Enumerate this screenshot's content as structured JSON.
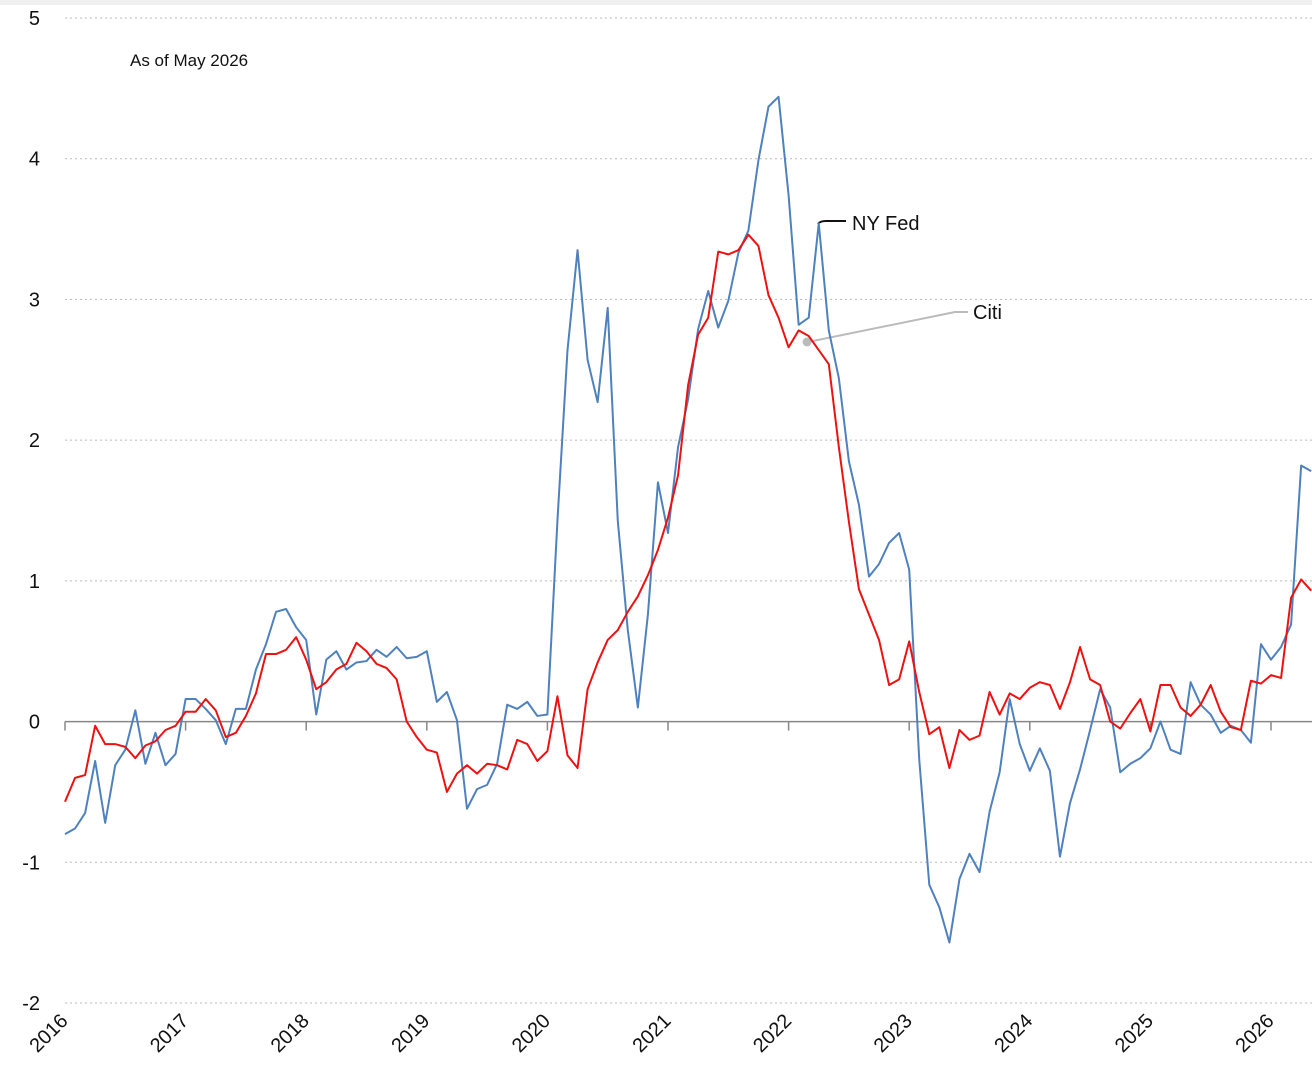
{
  "chart_data": {
    "type": "line",
    "note": "As of May 2026",
    "categories": [
      "2016",
      null,
      null,
      null,
      null,
      null,
      null,
      null,
      null,
      null,
      null,
      null,
      "2017",
      null,
      null,
      null,
      null,
      null,
      null,
      null,
      null,
      null,
      null,
      null,
      "2018",
      null,
      null,
      null,
      null,
      null,
      null,
      null,
      null,
      null,
      null,
      null,
      "2019",
      null,
      null,
      null,
      null,
      null,
      null,
      null,
      null,
      null,
      null,
      null,
      "2020",
      null,
      null,
      null,
      null,
      null,
      null,
      null,
      null,
      null,
      null,
      null,
      "2021",
      null,
      null,
      null,
      null,
      null,
      null,
      null,
      null,
      null,
      null,
      null,
      "2022",
      null,
      null,
      null,
      null,
      null,
      null,
      null,
      null,
      null,
      null,
      null,
      "2023",
      null,
      null,
      null,
      null,
      null,
      null,
      null,
      null,
      null,
      null,
      null,
      "2024",
      null,
      null,
      null,
      null,
      null,
      null,
      null,
      null,
      null,
      null,
      null,
      "2025",
      null,
      null,
      null,
      null,
      null,
      null,
      null,
      null,
      null,
      null,
      null,
      "2026",
      null,
      null,
      null,
      null
    ],
    "series": [
      {
        "name": "NY Fed",
        "color": "#4f81bd",
        "values": [
          -0.8,
          -0.76,
          -0.65,
          -0.28,
          -0.72,
          -0.31,
          -0.2,
          0.08,
          -0.3,
          -0.08,
          -0.31,
          -0.23,
          0.16,
          0.16,
          0.09,
          0.01,
          -0.16,
          0.09,
          0.09,
          0.37,
          0.55,
          0.78,
          0.8,
          0.67,
          0.58,
          0.05,
          0.44,
          0.5,
          0.37,
          0.42,
          0.43,
          0.51,
          0.46,
          0.53,
          0.45,
          0.46,
          0.5,
          0.14,
          0.21,
          0.01,
          -0.62,
          -0.48,
          -0.45,
          -0.3,
          0.12,
          0.09,
          0.14,
          0.04,
          0.05,
          1.43,
          2.64,
          3.35,
          2.57,
          2.27,
          2.94,
          1.43,
          0.65,
          0.1,
          0.76,
          1.7,
          1.34,
          1.95,
          2.29,
          2.79,
          3.06,
          2.8,
          2.99,
          3.33,
          3.49,
          3.99,
          4.37,
          4.44,
          3.74,
          2.82,
          2.87,
          3.54,
          2.78,
          2.44,
          1.85,
          1.54,
          1.03,
          1.12,
          1.27,
          1.34,
          1.08,
          -0.27,
          -1.16,
          -1.32,
          -1.57,
          -1.12,
          -0.94,
          -1.07,
          -0.64,
          -0.36,
          0.16,
          -0.16,
          -0.35,
          -0.19,
          -0.35,
          -0.96,
          -0.58,
          -0.34,
          -0.06,
          0.23,
          0.1,
          -0.36,
          -0.3,
          -0.26,
          -0.19,
          0.0,
          -0.2,
          -0.23,
          0.28,
          0.12,
          0.05,
          -0.08,
          -0.03,
          -0.06,
          -0.15,
          0.55,
          0.44,
          0.53,
          0.69,
          1.82,
          1.78
        ]
      },
      {
        "name": "Citi",
        "color": "#ee1111",
        "values": [
          -0.57,
          -0.4,
          -0.38,
          -0.03,
          -0.16,
          -0.16,
          -0.18,
          -0.26,
          -0.17,
          -0.14,
          -0.06,
          -0.03,
          0.07,
          0.07,
          0.16,
          0.08,
          -0.11,
          -0.08,
          0.04,
          0.2,
          0.48,
          0.48,
          0.51,
          0.6,
          0.44,
          0.23,
          0.28,
          0.37,
          0.41,
          0.56,
          0.5,
          0.41,
          0.38,
          0.3,
          0.0,
          -0.11,
          -0.2,
          -0.22,
          -0.5,
          -0.37,
          -0.31,
          -0.37,
          -0.3,
          -0.31,
          -0.34,
          -0.13,
          -0.16,
          -0.28,
          -0.21,
          0.18,
          -0.24,
          -0.33,
          0.23,
          0.42,
          0.58,
          0.65,
          0.78,
          0.89,
          1.04,
          1.22,
          1.45,
          1.75,
          2.39,
          2.75,
          2.87,
          3.34,
          3.32,
          3.35,
          3.46,
          3.38,
          3.03,
          2.87,
          2.66,
          2.78,
          2.74,
          2.64,
          2.54,
          1.95,
          1.42,
          0.94,
          0.76,
          0.58,
          0.26,
          0.3,
          0.57,
          0.21,
          -0.09,
          -0.04,
          -0.33,
          -0.06,
          -0.13,
          -0.1,
          0.21,
          0.05,
          0.2,
          0.16,
          0.24,
          0.28,
          0.26,
          0.09,
          0.28,
          0.53,
          0.3,
          0.26,
          0.0,
          -0.05,
          0.06,
          0.16,
          -0.07,
          0.26,
          0.26,
          0.1,
          0.04,
          0.12,
          0.26,
          0.07,
          -0.04,
          -0.06,
          0.29,
          0.27,
          0.33,
          0.31,
          0.88,
          1.01,
          0.93
        ]
      }
    ],
    "ylim": [
      -2,
      5
    ],
    "yticks": [
      -2,
      -1,
      0,
      1,
      2,
      3,
      4,
      5
    ],
    "grid": true
  }
}
